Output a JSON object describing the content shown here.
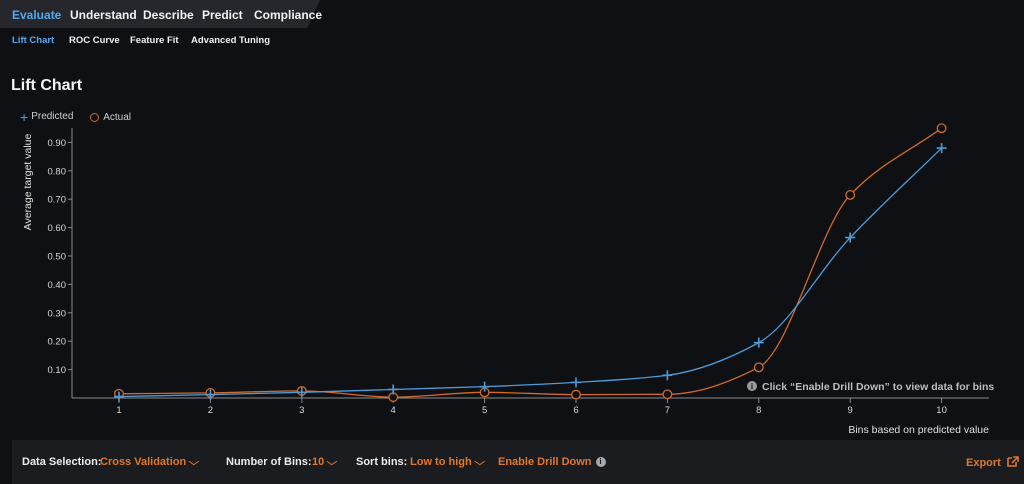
{
  "nav": {
    "main_tabs": [
      "Evaluate",
      "Understand",
      "Describe",
      "Predict",
      "Compliance"
    ],
    "sub_tabs": [
      "Lift Chart",
      "ROC Curve",
      "Feature Fit",
      "Advanced Tuning"
    ]
  },
  "page": {
    "title": "Lift Chart"
  },
  "chart_data": {
    "type": "line",
    "x": [
      1,
      2,
      3,
      4,
      5,
      6,
      7,
      8,
      9,
      10
    ],
    "series": [
      {
        "name": "Predicted",
        "values": [
          0.005,
          0.012,
          0.02,
          0.03,
          0.04,
          0.055,
          0.08,
          0.195,
          0.565,
          0.88
        ],
        "color": "#4e9bd8",
        "marker": "plus"
      },
      {
        "name": "Actual",
        "values": [
          0.015,
          0.018,
          0.025,
          0.003,
          0.02,
          0.012,
          0.013,
          0.108,
          0.715,
          0.95
        ],
        "color": "#d06a2b",
        "marker": "circle"
      }
    ],
    "xlabel": "Bins based on predicted value",
    "ylabel": "Average target value",
    "ylim": [
      0,
      0.95
    ],
    "yticks": [
      "0.10",
      "0.20",
      "0.30",
      "0.40",
      "0.50",
      "0.60",
      "0.70",
      "0.80",
      "0.90"
    ],
    "xticks": [
      "1",
      "2",
      "3",
      "4",
      "5",
      "6",
      "7",
      "8",
      "9",
      "10"
    ],
    "grid": false,
    "legend_position": "top-left",
    "annotation": "Click “Enable Drill Down” to view data for bins"
  },
  "footer": {
    "data_selection_label": "Data Selection:",
    "data_selection_value": "Cross Validation",
    "bins_label": "Number of Bins:",
    "bins_value": "10",
    "sort_label": "Sort bins:",
    "sort_value": "Low to high",
    "drill_down": "Enable Drill Down",
    "export": "Export"
  }
}
